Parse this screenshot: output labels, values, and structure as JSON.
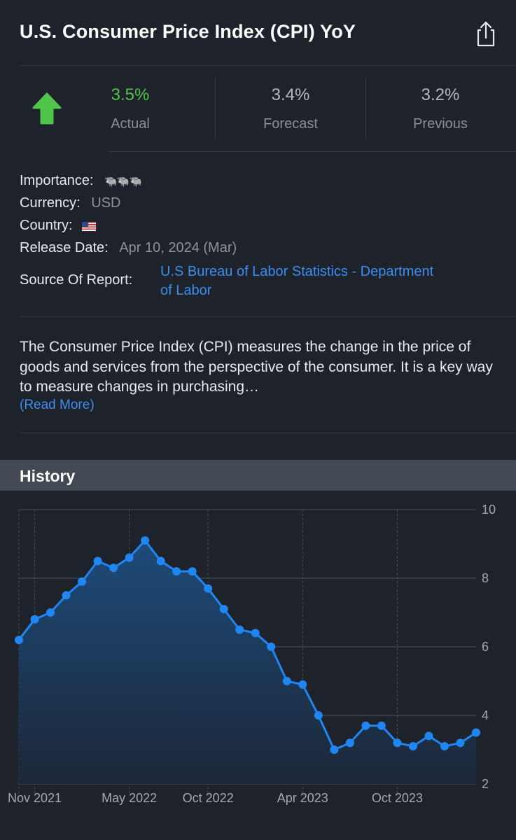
{
  "header": {
    "title": "U.S. Consumer Price Index (CPI) YoY"
  },
  "stats": {
    "direction_icon": "up-arrow-icon",
    "actual": {
      "value": "3.5%",
      "label": "Actual",
      "color": "#4fc54a"
    },
    "forecast": {
      "value": "3.4%",
      "label": "Forecast"
    },
    "previous": {
      "value": "3.2%",
      "label": "Previous"
    }
  },
  "details": {
    "importance": {
      "label": "Importance:",
      "value": "🐃🐃🐃",
      "icon": "bull-icon",
      "level": 3
    },
    "currency": {
      "label": "Currency:",
      "value": "USD"
    },
    "country": {
      "label": "Country:",
      "flag": "🇺🇸",
      "icon": "us-flag-icon"
    },
    "release_date": {
      "label": "Release Date:",
      "value": "Apr 10, 2024 (Mar)"
    },
    "source": {
      "label": "Source Of Report:",
      "line1": "U.S Bureau of Labor Statistics - Department",
      "line2": "of Labor"
    }
  },
  "description": {
    "text": "The Consumer Price Index (CPI) measures the change in the price of goods and services from the perspective of the consumer. It is a key way to measure changes in purchasing…",
    "read_more": "(Read More)"
  },
  "history": {
    "title": "History"
  },
  "chart_data": {
    "type": "area",
    "x": [
      "2021-10",
      "2021-11",
      "2021-12",
      "2022-01",
      "2022-02",
      "2022-03",
      "2022-04",
      "2022-05",
      "2022-06",
      "2022-07",
      "2022-08",
      "2022-09",
      "2022-10",
      "2022-11",
      "2022-12",
      "2023-01",
      "2023-02",
      "2023-03",
      "2023-04",
      "2023-05",
      "2023-06",
      "2023-07",
      "2023-08",
      "2023-09",
      "2023-10",
      "2023-11",
      "2023-12",
      "2024-01",
      "2024-02",
      "2024-03"
    ],
    "series": [
      {
        "values": [
          6.2,
          6.8,
          7.0,
          7.5,
          7.9,
          8.5,
          8.3,
          8.6,
          9.1,
          8.5,
          8.2,
          8.2,
          7.7,
          7.1,
          6.5,
          6.4,
          6.0,
          5.0,
          4.9,
          4.0,
          3.0,
          3.2,
          3.7,
          3.7,
          3.2,
          3.1,
          3.4,
          3.1,
          3.2,
          3.5
        ]
      }
    ],
    "x_tick_labels": [
      "Nov 2021",
      "May 2022",
      "Oct 2022",
      "Apr 2023",
      "Oct 2023"
    ],
    "y_ticks": [
      2,
      4,
      6,
      8,
      10
    ],
    "ylim": [
      2,
      10
    ],
    "grid": true,
    "colors": {
      "line": "#1f86f2",
      "fill_top": "#1d4b7a",
      "fill_bottom": "#1c2738"
    }
  }
}
